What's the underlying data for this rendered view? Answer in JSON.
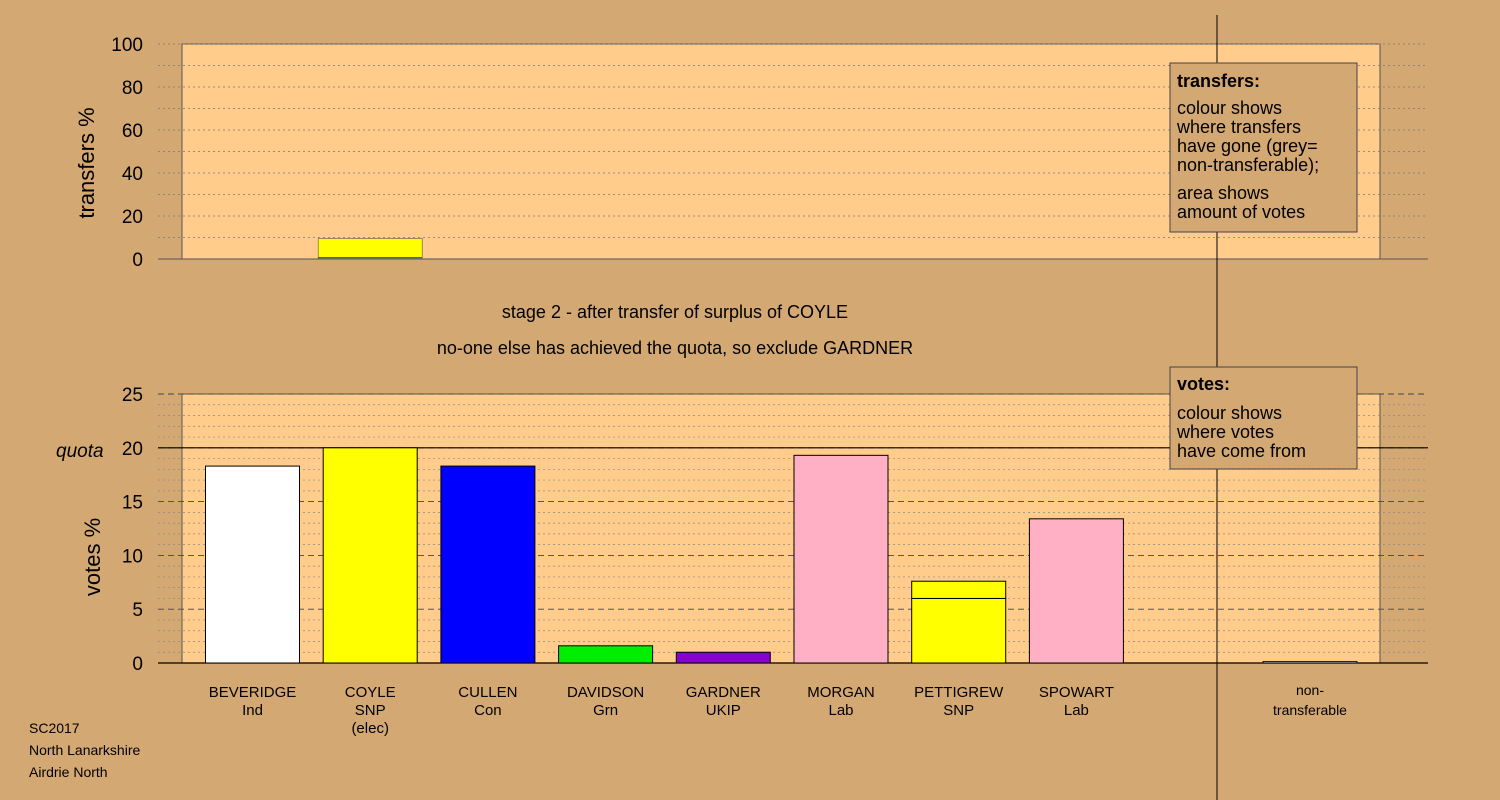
{
  "chart_data": [
    {
      "type": "bar",
      "ylabel": "transfers %",
      "ylim": [
        0,
        100
      ],
      "yticks": [
        "0",
        "20",
        "40",
        "60",
        "80",
        "100"
      ],
      "bar_category": "COYLE",
      "bar_segments": [
        {
          "party": "SNP",
          "color": "#ffff00",
          "value": 8.7
        },
        {
          "party": "Grn",
          "color": "#00ee00",
          "value": 0.3
        },
        {
          "party": "non-transferable",
          "color": "#b0b0b0",
          "value": 0.5
        }
      ],
      "legend": {
        "title": "transfers:",
        "lines_a": [
          "colour shows",
          "where transfers",
          "have gone (grey=",
          "non-transferable);"
        ],
        "lines_b": [
          "area shows",
          "amount of votes"
        ]
      }
    },
    {
      "type": "bar",
      "ylabel": "votes %",
      "ylim": [
        0,
        25
      ],
      "yticks": [
        "0",
        "5",
        "10",
        "15",
        "20",
        "25"
      ],
      "quota_label": "quota",
      "quota_value": 20,
      "bars": [
        {
          "name": "BEVERIDGE",
          "party": "Ind",
          "elected": "",
          "segments": [
            {
              "color": "#ffffff",
              "value": 18.3
            }
          ]
        },
        {
          "name": "COYLE",
          "party": "SNP",
          "elected": "(elec)",
          "segments": [
            {
              "color": "#ffff00",
              "value": 20.0
            }
          ]
        },
        {
          "name": "CULLEN",
          "party": "Con",
          "elected": "",
          "segments": [
            {
              "color": "#0000ff",
              "value": 18.3
            }
          ]
        },
        {
          "name": "DAVIDSON",
          "party": "Grn",
          "elected": "",
          "segments": [
            {
              "color": "#00ee00",
              "value": 1.6
            }
          ]
        },
        {
          "name": "GARDNER",
          "party": "UKIP",
          "elected": "",
          "segments": [
            {
              "color": "#8800cc",
              "value": 1.0
            }
          ]
        },
        {
          "name": "MORGAN",
          "party": "Lab",
          "elected": "",
          "segments": [
            {
              "color": "#ffb0c4",
              "value": 19.3
            }
          ]
        },
        {
          "name": "PETTIGREW",
          "party": "SNP",
          "elected": "",
          "segments": [
            {
              "color": "#ffff00",
              "value": 6.0
            },
            {
              "color": "#ffff00",
              "value": 1.6
            }
          ]
        },
        {
          "name": "SPOWART",
          "party": "Lab",
          "elected": "",
          "segments": [
            {
              "color": "#ffb0c4",
              "value": 13.4
            }
          ]
        }
      ],
      "nontransferable": {
        "line1": "non-",
        "line2": "transferable",
        "value": 0.15
      },
      "legend": {
        "title": "votes:",
        "lines": [
          "colour shows",
          "where votes",
          "have come from"
        ]
      }
    }
  ],
  "stage_line1": "stage 2 - after transfer of surplus of COYLE",
  "stage_line2": "no-one else has achieved the quota, so exclude GARDNER",
  "footer": {
    "line1": "SC2017",
    "line2": "North Lanarkshire",
    "line3": "Airdrie North"
  },
  "colors": {
    "background": "#d4a873",
    "plot": "#ffcc8c"
  }
}
